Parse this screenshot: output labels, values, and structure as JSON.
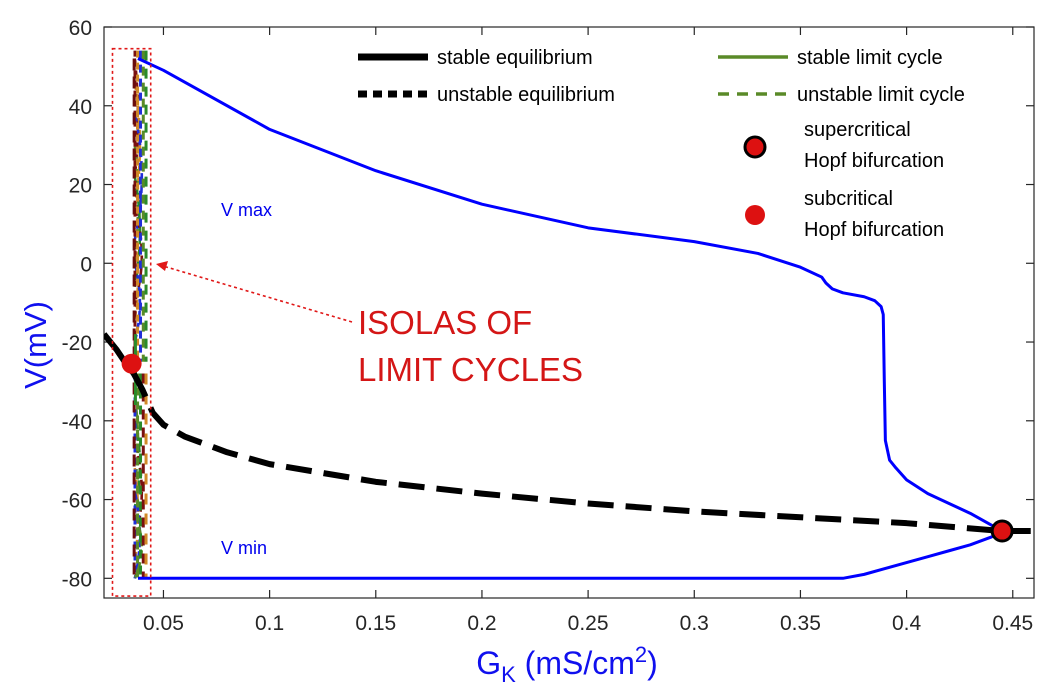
{
  "chart_data": {
    "type": "line",
    "title": "",
    "xlabel_main": "G",
    "xlabel_sub": "K",
    "xlabel_unit": " (mS/cm",
    "xlabel_sup": "2",
    "xlabel_close": ")",
    "ylabel": "V(mV)",
    "xlim": [
      0.022,
      0.46
    ],
    "ylim": [
      -85,
      60
    ],
    "xticks": [
      0.05,
      0.1,
      0.15,
      0.2,
      0.25,
      0.3,
      0.35,
      0.4,
      0.45
    ],
    "xtick_labels": [
      "0.05",
      "0.1",
      "0.15",
      "0.2",
      "0.25",
      "0.3",
      "0.35",
      "0.4",
      "0.45"
    ],
    "yticks": [
      -80,
      -60,
      -40,
      -20,
      0,
      20,
      40,
      60
    ],
    "ytick_labels": [
      "-80",
      "-60",
      "-40",
      "-20",
      "0",
      "20",
      "40",
      "60"
    ],
    "grid": false,
    "legend_position": "top-right",
    "colors": {
      "stable_limit_cycle_branch": "#0000ff",
      "equilibrium": "#000000",
      "limit_cycle_legend": "#5a8a28",
      "hopf_marker": "#dd1111",
      "isola_annotation": "#d41616",
      "isola_colors": [
        "#7a1010",
        "#d08a28",
        "#1f2ed8",
        "#5a8a28",
        "#2a8a2a"
      ]
    },
    "series": [
      {
        "name": "stable limit cycle",
        "style": "solid",
        "color": "#0000ff",
        "x": [
          0.038,
          0.05,
          0.1,
          0.15,
          0.2,
          0.25,
          0.3,
          0.33,
          0.35,
          0.36,
          0.362,
          0.365,
          0.37,
          0.38,
          0.385,
          0.388,
          0.389,
          0.3895,
          0.39,
          0.392,
          0.395,
          0.4,
          0.41,
          0.42,
          0.43,
          0.44,
          0.445
        ],
        "y": [
          52,
          49,
          34,
          23.5,
          15,
          9,
          5.5,
          2.5,
          -1,
          -3.5,
          -5,
          -6.5,
          -7.5,
          -8.5,
          -9.5,
          -11,
          -13,
          -30,
          -45,
          -50,
          -52,
          -55,
          -58.5,
          -61,
          -63.5,
          -66.5,
          -68
        ]
      },
      {
        "name": "stable limit cycle (V min)",
        "style": "solid",
        "color": "#0000ff",
        "x": [
          0.038,
          0.05,
          0.1,
          0.2,
          0.3,
          0.35,
          0.37,
          0.38,
          0.39,
          0.4,
          0.41,
          0.42,
          0.43,
          0.44,
          0.445
        ],
        "y": [
          -80,
          -80,
          -80,
          -80,
          -80,
          -80,
          -80,
          -79,
          -77.5,
          -76,
          -74.5,
          -73,
          -71.5,
          -69.5,
          -68
        ]
      },
      {
        "name": "stable equilibrium",
        "style": "solid",
        "color": "#000000",
        "x": [
          0.022,
          0.028,
          0.033,
          0.036
        ],
        "y": [
          -18,
          -22,
          -26,
          -28
        ]
      },
      {
        "name": "unstable equilibrium",
        "style": "dashed",
        "color": "#000000",
        "x": [
          0.036,
          0.04,
          0.045,
          0.05,
          0.06,
          0.08,
          0.1,
          0.15,
          0.2,
          0.25,
          0.3,
          0.35,
          0.4,
          0.445,
          0.46
        ],
        "y": [
          -28,
          -32,
          -38,
          -41,
          -44,
          -48,
          -51,
          -55.5,
          -58.5,
          -61,
          -63,
          -64.5,
          -66,
          -68,
          -68
        ]
      }
    ],
    "hopf_points": [
      {
        "label": "subcritical Hopf bifurcation",
        "x": 0.035,
        "y": -25.5,
        "type": "subcritical"
      },
      {
        "label": "supercritical Hopf bifurcation",
        "x": 0.445,
        "y": -68,
        "type": "supercritical"
      }
    ],
    "isola_region": {
      "x": [
        0.026,
        0.044
      ],
      "y": [
        -84.5,
        54.5
      ]
    },
    "annotations": {
      "vmax": "V max",
      "vmin": "V min",
      "isolas_line1": "ISOLAS OF",
      "isolas_line2": "LIMIT CYCLES"
    },
    "legend": [
      {
        "label": "stable equilibrium",
        "style": "solid-thick",
        "color": "#000000"
      },
      {
        "label": "unstable equilibrium",
        "style": "dotted-thick",
        "color": "#000000"
      },
      {
        "label": "stable limit cycle",
        "style": "solid",
        "color": "#5a8a28"
      },
      {
        "label": "unstable limit cycle",
        "style": "dashed",
        "color": "#5a8a28"
      },
      {
        "label_line1": "supercritical",
        "label_line2": "Hopf bifurcation",
        "style": "marker-outlined",
        "color": "#dd1111"
      },
      {
        "label_line1": "subcritical",
        "label_line2": "Hopf bifurcation",
        "style": "marker",
        "color": "#dd1111"
      }
    ]
  }
}
